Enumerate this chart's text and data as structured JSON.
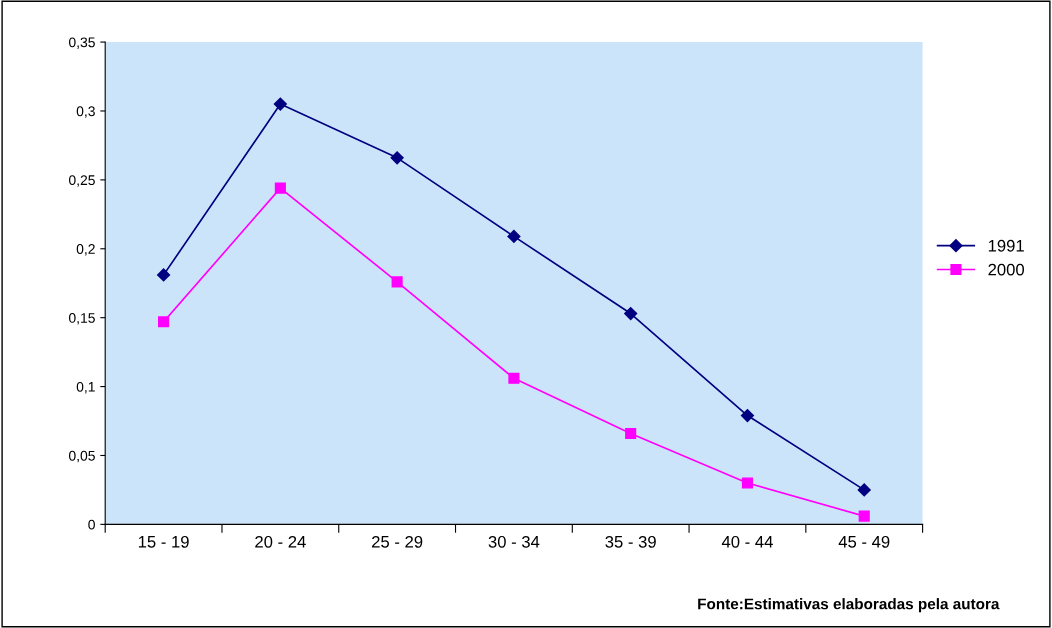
{
  "chart_data": {
    "type": "line",
    "categories": [
      "15 - 19",
      "20 - 24",
      "25 - 29",
      "30 - 34",
      "35 - 39",
      "40 - 44",
      "45 - 49"
    ],
    "series": [
      {
        "name": "1991",
        "color": "#000080",
        "marker": "diamond",
        "values": [
          0.181,
          0.305,
          0.266,
          0.209,
          0.153,
          0.079,
          0.025
        ]
      },
      {
        "name": "2000",
        "color": "#ff00ff",
        "marker": "square",
        "values": [
          0.147,
          0.244,
          0.176,
          0.106,
          0.066,
          0.03,
          0.006
        ]
      }
    ],
    "ylim": [
      0,
      0.35
    ],
    "yticks": [
      {
        "value": 0,
        "label": "0"
      },
      {
        "value": 0.05,
        "label": "0,05"
      },
      {
        "value": 0.1,
        "label": "0,1"
      },
      {
        "value": 0.15,
        "label": "0,15"
      },
      {
        "value": 0.2,
        "label": "0,2"
      },
      {
        "value": 0.25,
        "label": "0,25"
      },
      {
        "value": 0.3,
        "label": "0,3"
      },
      {
        "value": 0.35,
        "label": "0,35"
      }
    ],
    "grid": false,
    "legend": "right",
    "annotations": [
      "Fonte:Estimativas elaboradas pela autora"
    ]
  }
}
